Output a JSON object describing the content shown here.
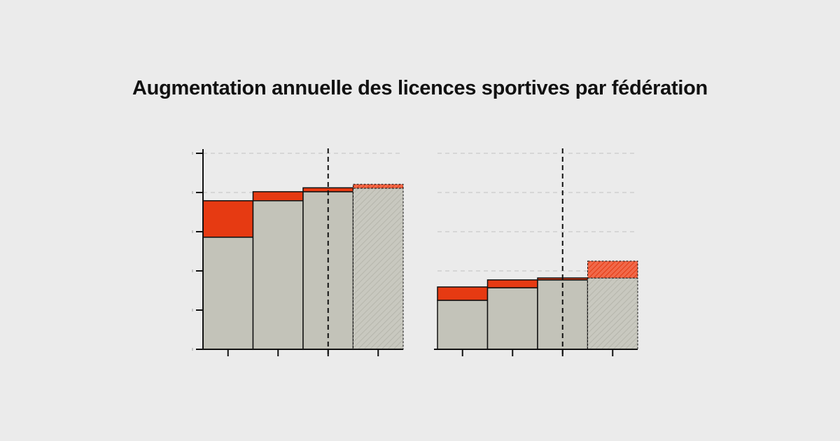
{
  "title": "Augmentation annuelle des licences sportives par fédération",
  "colors": {
    "base": "#c3c3b9",
    "increase": "#e63a12",
    "projected_increase": "#f0694a",
    "background": "#ebebeb",
    "axis": "#111111"
  },
  "chart_data": [
    {
      "type": "bar",
      "stacked": true,
      "grid": "horizontal dashed",
      "ylim": [
        0,
        5
      ],
      "categories": [
        "",
        "",
        "",
        ""
      ],
      "reference_line_after_category": 2.5,
      "projected_last_bar": true,
      "series": [
        {
          "values": [
            2.86,
            3.79,
            4.02,
            4.11
          ]
        },
        {
          "values": [
            0.93,
            0.23,
            0.1,
            0.1
          ]
        }
      ]
    },
    {
      "type": "bar",
      "stacked": true,
      "grid": "horizontal dashed",
      "ylim": [
        0,
        5
      ],
      "categories": [
        "",
        "",
        "",
        ""
      ],
      "reference_line_after_category": 2.5,
      "projected_last_bar": true,
      "series": [
        {
          "values": [
            1.25,
            1.57,
            1.77,
            1.82
          ]
        },
        {
          "values": [
            0.34,
            0.2,
            0.05,
            0.43
          ]
        }
      ]
    }
  ]
}
